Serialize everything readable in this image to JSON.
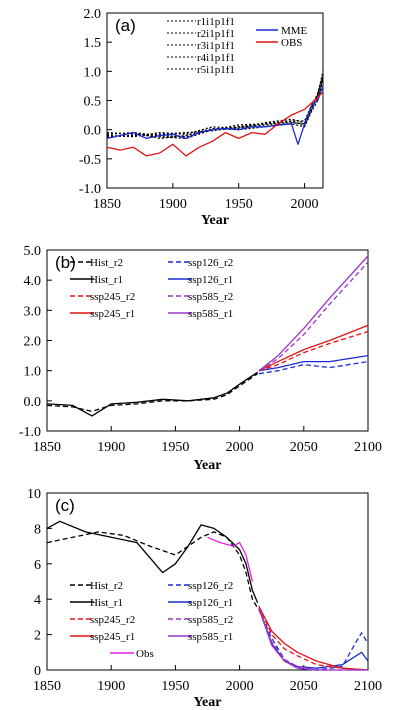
{
  "chart_data": [
    {
      "type": "line",
      "panel_label": "(a)",
      "xlabel": "Year",
      "ylabel": "",
      "xlim": [
        1850,
        2014
      ],
      "ylim": [
        -1.0,
        2.0
      ],
      "xticks": [
        "1850",
        "1900",
        "1950",
        "2000"
      ],
      "yticks": [
        "-1.0",
        "-0.5",
        "0.0",
        "0.5",
        "1.0",
        "1.5",
        "2.0"
      ],
      "legend_left": [
        "r1i1p1f1",
        "r2i1p1f1",
        "r3i1p1f1",
        "r4i1p1f1",
        "r5i1p1f1"
      ],
      "legend_right": [
        "MME",
        "OBS"
      ],
      "colors": {
        "members": "#000000",
        "MME": "#1a2bd6",
        "OBS": "#e01414"
      },
      "series": [
        {
          "name": "r1i1p1f1",
          "style": "dotted",
          "x": [
            1850,
            1870,
            1890,
            1910,
            1930,
            1950,
            1970,
            1990,
            2000,
            2005,
            2010,
            2014
          ],
          "values": [
            -0.08,
            -0.05,
            -0.1,
            -0.12,
            0.0,
            0.05,
            0.1,
            0.15,
            0.15,
            0.4,
            0.6,
            1.0
          ]
        },
        {
          "name": "r2i1p1f1",
          "style": "dotted",
          "x": [
            1850,
            1870,
            1890,
            1910,
            1930,
            1950,
            1970,
            1990,
            2000,
            2005,
            2010,
            2014
          ],
          "values": [
            -0.12,
            -0.1,
            -0.08,
            -0.05,
            -0.02,
            0.04,
            0.08,
            0.12,
            0.1,
            0.35,
            0.55,
            0.9
          ]
        },
        {
          "name": "r3i1p1f1",
          "style": "dotted",
          "x": [
            1850,
            1870,
            1890,
            1910,
            1930,
            1950,
            1970,
            1990,
            2000,
            2005,
            2010,
            2014
          ],
          "values": [
            -0.15,
            -0.05,
            -0.15,
            -0.1,
            0.02,
            0.0,
            0.05,
            0.1,
            0.05,
            0.3,
            0.5,
            0.85
          ]
        },
        {
          "name": "r4i1p1f1",
          "style": "dotted",
          "x": [
            1850,
            1870,
            1890,
            1910,
            1930,
            1950,
            1970,
            1990,
            2000,
            2005,
            2010,
            2014
          ],
          "values": [
            -0.1,
            -0.12,
            -0.05,
            -0.08,
            0.05,
            0.02,
            0.12,
            0.18,
            0.12,
            0.38,
            0.62,
            0.95
          ]
        },
        {
          "name": "r5i1p1f1",
          "style": "dotted",
          "x": [
            1850,
            1870,
            1890,
            1910,
            1930,
            1950,
            1970,
            1990,
            2000,
            2005,
            2010,
            2014
          ],
          "values": [
            -0.05,
            -0.08,
            -0.12,
            -0.15,
            0.0,
            0.08,
            0.1,
            0.14,
            0.08,
            0.32,
            0.58,
            0.9
          ]
        },
        {
          "name": "MME",
          "style": "solid",
          "x": [
            1850,
            1860,
            1870,
            1880,
            1890,
            1900,
            1910,
            1920,
            1930,
            1940,
            1950,
            1960,
            1970,
            1980,
            1990,
            1995,
            2000,
            2005,
            2010,
            2014
          ],
          "values": [
            -0.15,
            -0.1,
            -0.05,
            -0.15,
            -0.1,
            -0.08,
            -0.15,
            -0.05,
            0.0,
            0.02,
            0.0,
            0.05,
            0.05,
            0.08,
            0.1,
            -0.25,
            0.1,
            0.4,
            0.5,
            0.75
          ]
        },
        {
          "name": "OBS",
          "style": "solid",
          "x": [
            1850,
            1860,
            1870,
            1880,
            1890,
            1900,
            1910,
            1920,
            1930,
            1940,
            1950,
            1960,
            1970,
            1980,
            1990,
            2000,
            2005,
            2010,
            2014
          ],
          "values": [
            -0.3,
            -0.35,
            -0.3,
            -0.45,
            -0.4,
            -0.25,
            -0.45,
            -0.3,
            -0.2,
            -0.05,
            -0.15,
            -0.05,
            -0.08,
            0.1,
            0.25,
            0.35,
            0.45,
            0.55,
            0.65
          ]
        }
      ]
    },
    {
      "type": "line",
      "panel_label": "(b)",
      "xlabel": "Year",
      "ylabel": "",
      "xlim": [
        1850,
        2100
      ],
      "ylim": [
        -1.0,
        5.0
      ],
      "xticks": [
        "1850",
        "1900",
        "1950",
        "2000",
        "2050",
        "2100"
      ],
      "yticks": [
        "-1.0",
        "0.0",
        "1.0",
        "2.0",
        "3.0",
        "4.0",
        "5.0"
      ],
      "legend": [
        "Hist_r2",
        "ssp126_r2",
        "Hist_r1",
        "ssp126_r1",
        "ssp245_r2",
        "ssp585_r2",
        "ssp245_r1",
        "ssp585_r1"
      ],
      "colors": {
        "Hist": "#000000",
        "ssp126": "#1a2bd6",
        "ssp245": "#e01414",
        "ssp585": "#9a33cc"
      },
      "series": [
        {
          "name": "Hist_r2",
          "style": "dashed",
          "x": [
            1850,
            1870,
            1885,
            1900,
            1920,
            1940,
            1960,
            1980,
            1990,
            2000,
            2014
          ],
          "values": [
            -0.15,
            -0.2,
            -0.35,
            -0.15,
            -0.1,
            0.0,
            0.0,
            0.05,
            0.2,
            0.5,
            0.9
          ]
        },
        {
          "name": "Hist_r1",
          "style": "solid",
          "x": [
            1850,
            1870,
            1885,
            1900,
            1920,
            1940,
            1960,
            1980,
            1990,
            2000,
            2014
          ],
          "values": [
            -0.1,
            -0.15,
            -0.5,
            -0.1,
            -0.05,
            0.05,
            0.0,
            0.1,
            0.25,
            0.55,
            0.95
          ]
        },
        {
          "name": "ssp126_r2",
          "style": "dashed",
          "x": [
            2015,
            2030,
            2050,
            2070,
            2100
          ],
          "values": [
            0.9,
            1.0,
            1.2,
            1.1,
            1.3
          ]
        },
        {
          "name": "ssp126_r1",
          "style": "solid",
          "x": [
            2015,
            2030,
            2050,
            2070,
            2100
          ],
          "values": [
            1.0,
            1.1,
            1.3,
            1.3,
            1.5
          ]
        },
        {
          "name": "ssp245_r2",
          "style": "dashed",
          "x": [
            2015,
            2030,
            2050,
            2070,
            2100
          ],
          "values": [
            1.0,
            1.2,
            1.6,
            1.9,
            2.3
          ]
        },
        {
          "name": "ssp245_r1",
          "style": "solid",
          "x": [
            2015,
            2030,
            2050,
            2070,
            2100
          ],
          "values": [
            1.0,
            1.3,
            1.7,
            2.0,
            2.5
          ]
        },
        {
          "name": "ssp585_r2",
          "style": "dashed",
          "x": [
            2015,
            2030,
            2050,
            2070,
            2100
          ],
          "values": [
            1.0,
            1.4,
            2.2,
            3.2,
            4.6
          ]
        },
        {
          "name": "ssp585_r1",
          "style": "solid",
          "x": [
            2015,
            2030,
            2050,
            2070,
            2100
          ],
          "values": [
            1.0,
            1.5,
            2.4,
            3.4,
            4.8
          ]
        }
      ]
    },
    {
      "type": "line",
      "panel_label": "(c)",
      "xlabel": "Year",
      "ylabel": "",
      "xlim": [
        1850,
        2100
      ],
      "ylim": [
        0,
        10
      ],
      "xticks": [
        "1850",
        "1900",
        "1950",
        "2000",
        "2050",
        "2100"
      ],
      "yticks": [
        "0",
        "2",
        "4",
        "6",
        "8",
        "10"
      ],
      "legend": [
        "Hist_r2",
        "ssp126_r2",
        "Hist_r1",
        "ssp126_r1",
        "ssp245_r2",
        "ssp585_r2",
        "ssp245_r1",
        "ssp585_r1",
        "Obs"
      ],
      "colors": {
        "Hist": "#000000",
        "ssp126": "#1a2bd6",
        "ssp245": "#e01414",
        "ssp585": "#9a33cc",
        "Obs": "#e020e0"
      },
      "series": [
        {
          "name": "Hist_r2",
          "style": "dashed",
          "x": [
            1850,
            1870,
            1890,
            1910,
            1930,
            1950,
            1970,
            1980,
            1990,
            2000,
            2005,
            2010,
            2014
          ],
          "values": [
            7.2,
            7.5,
            7.8,
            7.6,
            7.0,
            6.5,
            7.5,
            7.8,
            7.5,
            6.5,
            5.5,
            4.0,
            3.5
          ]
        },
        {
          "name": "Hist_r1",
          "style": "solid",
          "x": [
            1850,
            1860,
            1880,
            1900,
            1920,
            1940,
            1950,
            1960,
            1970,
            1980,
            1990,
            2000,
            2005,
            2010,
            2014
          ],
          "values": [
            8.0,
            8.4,
            7.8,
            7.5,
            7.2,
            5.5,
            6.0,
            7.0,
            8.2,
            8.0,
            7.5,
            6.8,
            6.0,
            4.5,
            3.8
          ]
        },
        {
          "name": "ssp126_r2",
          "style": "dashed",
          "x": [
            2015,
            2025,
            2035,
            2045,
            2060,
            2080,
            2090,
            2095,
            2100
          ],
          "values": [
            3.4,
            1.8,
            0.6,
            0.1,
            0.0,
            0.2,
            1.5,
            2.1,
            1.5
          ]
        },
        {
          "name": "ssp126_r1",
          "style": "solid",
          "x": [
            2015,
            2025,
            2035,
            2045,
            2060,
            2080,
            2095,
            2100
          ],
          "values": [
            3.5,
            1.5,
            0.5,
            0.2,
            0.1,
            0.3,
            1.0,
            0.5
          ]
        },
        {
          "name": "ssp245_r2",
          "style": "dashed",
          "x": [
            2015,
            2025,
            2035,
            2045,
            2060,
            2080,
            2100
          ],
          "values": [
            3.6,
            2.0,
            1.2,
            0.8,
            0.3,
            0.1,
            0.0
          ]
        },
        {
          "name": "ssp245_r1",
          "style": "solid",
          "x": [
            2015,
            2025,
            2035,
            2045,
            2060,
            2080,
            2100
          ],
          "values": [
            3.6,
            2.2,
            1.5,
            1.0,
            0.5,
            0.1,
            0.0
          ]
        },
        {
          "name": "ssp585_r2",
          "style": "dashed",
          "x": [
            2015,
            2025,
            2035,
            2045,
            2060,
            2100
          ],
          "values": [
            3.4,
            1.6,
            0.6,
            0.2,
            0.0,
            0.0
          ]
        },
        {
          "name": "ssp585_r1",
          "style": "solid",
          "x": [
            2015,
            2025,
            2035,
            2045,
            2060,
            2100
          ],
          "values": [
            3.5,
            1.4,
            0.5,
            0.1,
            0.0,
            0.0
          ]
        },
        {
          "name": "Obs",
          "style": "solid",
          "x": [
            1975,
            1985,
            1995,
            2000,
            2005,
            2010
          ],
          "values": [
            7.5,
            7.2,
            7.0,
            7.2,
            6.5,
            5.0
          ]
        }
      ]
    }
  ]
}
